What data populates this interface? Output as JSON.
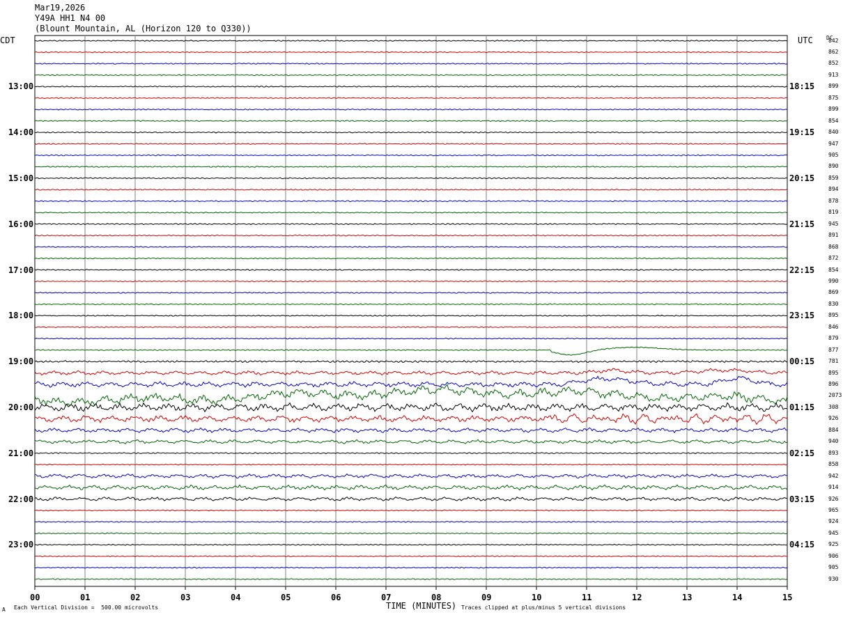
{
  "header": {
    "date": "Mar19,2026",
    "station": "Y49A HH1 N4 00",
    "location": "(Blount Mountain, AL (Horizon 120 to Q330))"
  },
  "labels": {
    "left_zone": "CDT",
    "right_zone": "UTC",
    "dc_header": "DC",
    "xlabel": "TIME (MINUTES)",
    "scale_note": "Each Vertical Division =  500.00 microvolts",
    "clip_note": "Traces clipped at plus/minus 5 vertical divisions",
    "corner_mark": "A"
  },
  "colors": {
    "trace_cycle": [
      "#000000",
      "#d00000",
      "#0000c8",
      "#006400"
    ],
    "grid": "#808080"
  },
  "chart_data": {
    "type": "line",
    "title": "",
    "xlabel": "TIME (MINUTES)",
    "x_ticks": [
      "00",
      "01",
      "02",
      "03",
      "04",
      "05",
      "06",
      "07",
      "08",
      "09",
      "10",
      "11",
      "12",
      "13",
      "14",
      "15"
    ],
    "xlim": [
      0,
      15
    ],
    "left_time_labels": [
      "13:00",
      "14:00",
      "15:00",
      "16:00",
      "17:00",
      "18:00",
      "19:00",
      "20:00",
      "21:00",
      "22:00",
      "23:00"
    ],
    "right_time_labels": [
      "18:15",
      "19:15",
      "20:15",
      "21:15",
      "22:15",
      "23:15",
      "00:15",
      "01:15",
      "02:15",
      "03:15",
      "04:15"
    ],
    "dc_offsets": [
      842,
      862,
      852,
      913,
      899,
      875,
      899,
      854,
      840,
      947,
      905,
      890,
      859,
      894,
      878,
      819,
      945,
      891,
      868,
      872,
      854,
      990,
      869,
      830,
      895,
      846,
      879,
      877,
      781,
      895,
      896,
      2073,
      308,
      926,
      884,
      940,
      893,
      858,
      942,
      914,
      926,
      965,
      924,
      945,
      925,
      906,
      905,
      930
    ],
    "trace_count": 48,
    "trace_minutes": 15
  }
}
